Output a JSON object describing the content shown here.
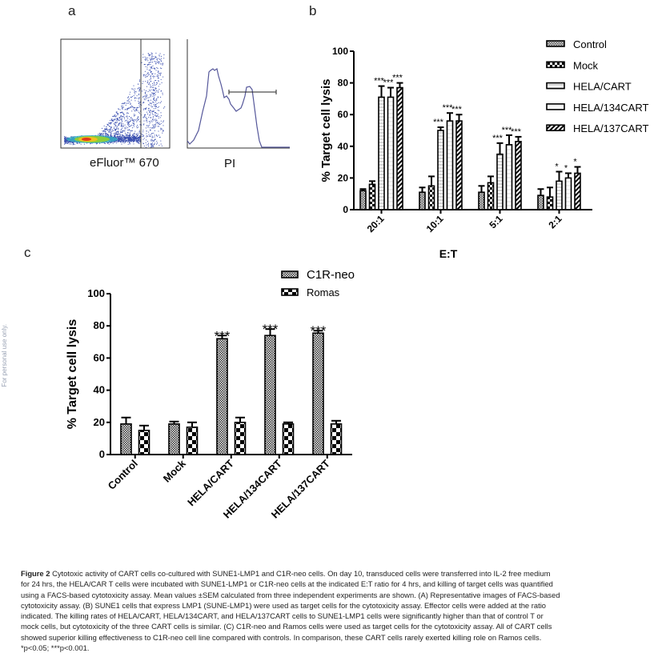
{
  "panels": {
    "a": "a",
    "b": "b",
    "c": "c"
  },
  "watermark": "For personal use only.",
  "panel_a": {
    "scatter_xlabel": "eFluor™ 670",
    "hist_xlabel": "PI"
  },
  "chart_data": [
    {
      "type": "bar",
      "panel": "b",
      "xlabel": "E:T",
      "ylabel": "% Target cell lysis",
      "ylim": [
        0,
        100
      ],
      "yticks": [
        "0",
        "20",
        "40",
        "60",
        "80",
        "100"
      ],
      "categories": [
        "20:1",
        "10:1",
        "5:1",
        "2:1"
      ],
      "legend_position": "top-right",
      "series": [
        {
          "name": "Control",
          "values": [
            12,
            11,
            11,
            9
          ],
          "err": [
            1,
            3,
            4,
            4
          ],
          "sig": [
            "",
            "",
            "",
            ""
          ]
        },
        {
          "name": "Mock",
          "values": [
            16,
            15,
            17,
            8
          ],
          "err": [
            2,
            6,
            4,
            6
          ],
          "sig": [
            "",
            "",
            "",
            ""
          ]
        },
        {
          "name": "HELA/CART",
          "values": [
            71,
            50,
            35,
            18
          ],
          "err": [
            7,
            2,
            7,
            6
          ],
          "sig": [
            "***",
            "***",
            "***",
            "*"
          ]
        },
        {
          "name": "HELA/134CART",
          "values": [
            71,
            56,
            41,
            20
          ],
          "err": [
            6,
            5,
            6,
            3
          ],
          "sig": [
            "***",
            "***",
            "***",
            "*"
          ]
        },
        {
          "name": "HELA/137CART",
          "values": [
            77,
            56,
            43,
            23
          ],
          "err": [
            3,
            4,
            3,
            4
          ],
          "sig": [
            "***",
            "***",
            "***",
            "*"
          ]
        }
      ]
    },
    {
      "type": "bar",
      "panel": "c",
      "xlabel": "",
      "ylabel": "% Target cell lysis",
      "ylim": [
        0,
        100
      ],
      "yticks": [
        "0",
        "20",
        "40",
        "60",
        "80",
        "100"
      ],
      "categories": [
        "Control",
        "Mock",
        "HELA/CART",
        "HELA/134CART",
        "HELA/137CART"
      ],
      "legend_position": "top-right",
      "series": [
        {
          "name": "C1R-neo",
          "values": [
            19,
            19,
            72,
            74,
            75.5
          ],
          "err": [
            4,
            1.5,
            2,
            4,
            1.5
          ],
          "sig": [
            "",
            "",
            "***",
            "***",
            "***"
          ]
        },
        {
          "name": "Romas",
          "values": [
            15,
            17,
            20,
            19,
            19
          ],
          "err": [
            3,
            3,
            3,
            1,
            2
          ],
          "sig": [
            "",
            "",
            "",
            "",
            ""
          ]
        }
      ]
    }
  ],
  "caption": {
    "fig": "Figure 2",
    "lines": [
      " Cytotoxic activity of CART cells co-cultured with SUNE1-LMP1 and C1R-neo cells. On day 10, transduced cells were transferred into IL-2 free medium",
      "for 24 hrs, the HELA/CAR T cells were incubated with SUNE1-LMP1 or C1R-neo cells at the indicated E:T ratio for 4 hrs, and killing of target cells was quantified",
      "using a FACS-based cytotoxicity assay. Mean values ±SEM calculated from three independent experiments are shown. (A) Representative images of FACS-based",
      "cytotoxicity assay. (B) SUNE1 cells that express LMP1 (SUNE-LMP1) were used as target cells for the cytotoxicity assay. Effector cells were added at the ratio",
      "indicated. The killing rates of HELA/CART, HELA/134CART, and HELA/137CART cells to SUNE1-LMP1 cells were significantly higher than that of control T or",
      "mock cells, but cytotoxicity of the three CART cells is similar. (C) C1R-neo and Ramos cells were used as target cells for the cytotoxicity assay. All of CART cells",
      "showed superior killing effectiveness to C1R-neo cell line compared with controls. In comparison, these CART cells rarely exerted killing role on Ramos cells.",
      "*p<0.05; ***p<0.001."
    ]
  }
}
